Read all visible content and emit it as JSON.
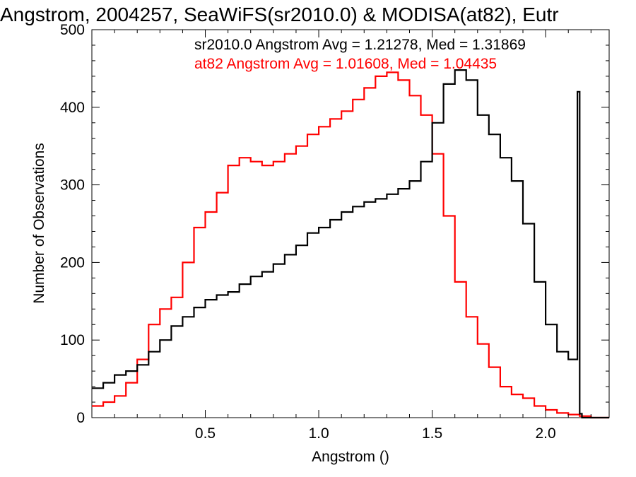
{
  "chart_data": {
    "type": "line",
    "title": "Angstrom, 2004257, SeaWiFS(sr2010.0) & MODISA(at82), Eutr",
    "xlabel": "Angstrom ()",
    "ylabel": "Number of Observations",
    "xlim": [
      0.0,
      2.28
    ],
    "ylim": [
      0,
      500
    ],
    "x_ticks": [
      0.5,
      1.0,
      1.5,
      2.0
    ],
    "y_ticks": [
      0,
      100,
      200,
      300,
      400,
      500
    ],
    "grid": false,
    "annotations": [
      {
        "text": "sr2010.0 Angstrom Avg = 1.21278, Med = 1.31869",
        "color": "#000000"
      },
      {
        "text": "at82 Angstrom Avg = 1.01608, Med = 1.04435",
        "color": "#ff0000"
      }
    ],
    "series": [
      {
        "color": "#000000",
        "x": [
          0.0,
          0.05,
          0.1,
          0.15,
          0.2,
          0.25,
          0.3,
          0.35,
          0.4,
          0.45,
          0.5,
          0.55,
          0.6,
          0.65,
          0.7,
          0.75,
          0.8,
          0.85,
          0.9,
          0.95,
          1.0,
          1.05,
          1.1,
          1.15,
          1.2,
          1.25,
          1.3,
          1.35,
          1.4,
          1.45,
          1.5,
          1.55,
          1.6,
          1.65,
          1.7,
          1.75,
          1.8,
          1.85,
          1.9,
          1.95,
          2.0,
          2.05,
          2.1,
          2.14,
          2.15,
          2.16,
          2.2,
          2.28
        ],
        "y": [
          38,
          45,
          55,
          60,
          68,
          85,
          100,
          118,
          130,
          142,
          152,
          158,
          162,
          172,
          182,
          188,
          198,
          210,
          222,
          238,
          245,
          255,
          265,
          272,
          278,
          282,
          288,
          295,
          305,
          330,
          380,
          430,
          448,
          435,
          390,
          365,
          335,
          305,
          250,
          175,
          120,
          85,
          75,
          420,
          5,
          0,
          0,
          0
        ]
      },
      {
        "color": "#ff0000",
        "x": [
          0.0,
          0.05,
          0.1,
          0.15,
          0.2,
          0.25,
          0.3,
          0.35,
          0.4,
          0.45,
          0.5,
          0.55,
          0.6,
          0.65,
          0.7,
          0.75,
          0.8,
          0.85,
          0.9,
          0.95,
          1.0,
          1.05,
          1.1,
          1.15,
          1.2,
          1.25,
          1.3,
          1.35,
          1.4,
          1.45,
          1.5,
          1.55,
          1.6,
          1.65,
          1.7,
          1.75,
          1.8,
          1.85,
          1.9,
          1.95,
          2.0,
          2.05,
          2.1,
          2.15,
          2.2,
          2.28
        ],
        "y": [
          15,
          20,
          28,
          45,
          75,
          120,
          140,
          155,
          200,
          245,
          265,
          290,
          325,
          335,
          330,
          325,
          330,
          340,
          350,
          365,
          375,
          385,
          395,
          410,
          425,
          440,
          445,
          435,
          415,
          390,
          340,
          260,
          175,
          130,
          95,
          65,
          40,
          30,
          25,
          15,
          10,
          6,
          4,
          2,
          0,
          0
        ]
      }
    ]
  }
}
